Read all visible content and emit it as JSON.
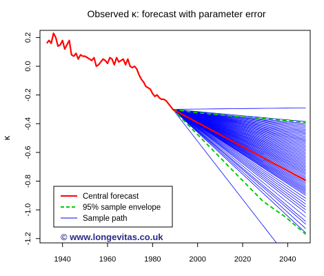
{
  "chart_data": {
    "type": "line",
    "title": "Observed κ: forecast with parameter error",
    "xlabel": "",
    "ylabel": "κ",
    "xlim": [
      1930,
      2050
    ],
    "ylim": [
      -1.23,
      0.25
    ],
    "xticks": [
      1940,
      1960,
      1980,
      2000,
      2020,
      2040
    ],
    "xtick_labels": [
      "1940",
      "1960",
      "1980",
      "2000",
      "2020",
      "2040"
    ],
    "yticks": [
      0.2,
      0.0,
      -0.2,
      -0.4,
      -0.6,
      -0.8,
      -1.0,
      -1.2
    ],
    "ytick_labels": [
      "0.2",
      "0.0",
      "-0.2",
      "-0.4",
      "-0.6",
      "-0.8",
      "-1.0",
      "-1.2"
    ],
    "grid": false,
    "legend_position": "bottom-left",
    "watermark": "© www.longevitas.co.uk",
    "series": [
      {
        "name": "",
        "role": "observed",
        "color": "#ff0000",
        "x": [
          1933,
          1934,
          1935,
          1936,
          1937,
          1938,
          1939,
          1940,
          1941,
          1942,
          1943,
          1944,
          1945,
          1946,
          1947,
          1948,
          1949,
          1950,
          1951,
          1952,
          1953,
          1954,
          1955,
          1956,
          1957,
          1958,
          1959,
          1960,
          1961,
          1962,
          1963,
          1964,
          1965,
          1966,
          1967,
          1968,
          1969,
          1970,
          1971,
          1972,
          1973,
          1974,
          1975,
          1976,
          1977,
          1978,
          1979,
          1980,
          1981,
          1982,
          1983,
          1984,
          1985,
          1986,
          1987,
          1988,
          1989
        ],
        "y": [
          0.16,
          0.18,
          0.16,
          0.23,
          0.2,
          0.14,
          0.15,
          0.18,
          0.12,
          0.15,
          0.18,
          0.08,
          0.07,
          0.09,
          0.05,
          0.08,
          0.07,
          0.07,
          0.06,
          0.05,
          0.04,
          0.06,
          0.0,
          0.01,
          0.03,
          0.05,
          0.04,
          0.02,
          0.06,
          0.05,
          0.01,
          0.06,
          0.03,
          0.04,
          0.05,
          0.01,
          0.05,
          0.0,
          -0.01,
          0.0,
          -0.02,
          -0.06,
          -0.09,
          -0.11,
          -0.14,
          -0.15,
          -0.16,
          -0.19,
          -0.21,
          -0.2,
          -0.22,
          -0.23,
          -0.23,
          -0.24,
          -0.26,
          -0.28,
          -0.3
        ]
      },
      {
        "name": "Central forecast",
        "role": "central",
        "color": "#ff0000",
        "x": [
          1989,
          2048
        ],
        "y": [
          -0.3,
          -0.795
        ]
      },
      {
        "name": "95% sample envelope",
        "role": "envelope-upper",
        "color": "#00cc00",
        "x": [
          1989,
          1999,
          2009,
          2019,
          2029,
          2039,
          2048
        ],
        "y": [
          -0.3,
          -0.322,
          -0.337,
          -0.352,
          -0.364,
          -0.377,
          -0.39
        ]
      },
      {
        "name": "",
        "role": "envelope-lower",
        "color": "#00cc00",
        "x": [
          1989,
          1999,
          2009,
          2019,
          2029,
          2039,
          2048
        ],
        "y": [
          -0.3,
          -0.46,
          -0.62,
          -0.78,
          -0.94,
          -1.05,
          -1.17
        ]
      },
      {
        "name": "Sample path",
        "role": "samples",
        "color": "#0000ff",
        "x0": 1989,
        "y0": -0.3,
        "x1": 2048,
        "end_values": [
          -0.29,
          -0.385,
          -0.4,
          -0.41,
          -0.42,
          -0.43,
          -0.44,
          -0.45,
          -0.46,
          -0.47,
          -0.48,
          -0.49,
          -0.5,
          -0.51,
          -0.52,
          -0.53,
          -0.54,
          -0.55,
          -0.56,
          -0.57,
          -0.58,
          -0.59,
          -0.6,
          -0.61,
          -0.62,
          -0.63,
          -0.64,
          -0.65,
          -0.66,
          -0.67,
          -0.68,
          -0.69,
          -0.7,
          -0.71,
          -0.72,
          -0.73,
          -0.74,
          -0.75,
          -0.76,
          -0.77,
          -0.78,
          -0.79,
          -0.8,
          -0.81,
          -0.82,
          -0.83,
          -0.84,
          -0.85,
          -0.86,
          -0.87,
          -0.88,
          -0.89,
          -0.9,
          -0.92,
          -0.94,
          -0.96,
          -0.98,
          -1.0,
          -1.02,
          -1.05,
          -1.08,
          -1.1,
          -1.13,
          -1.16
        ],
        "outlier": {
          "x": [
            1989,
            2036
          ],
          "y": [
            -0.3,
            -1.25
          ]
        }
      }
    ]
  }
}
